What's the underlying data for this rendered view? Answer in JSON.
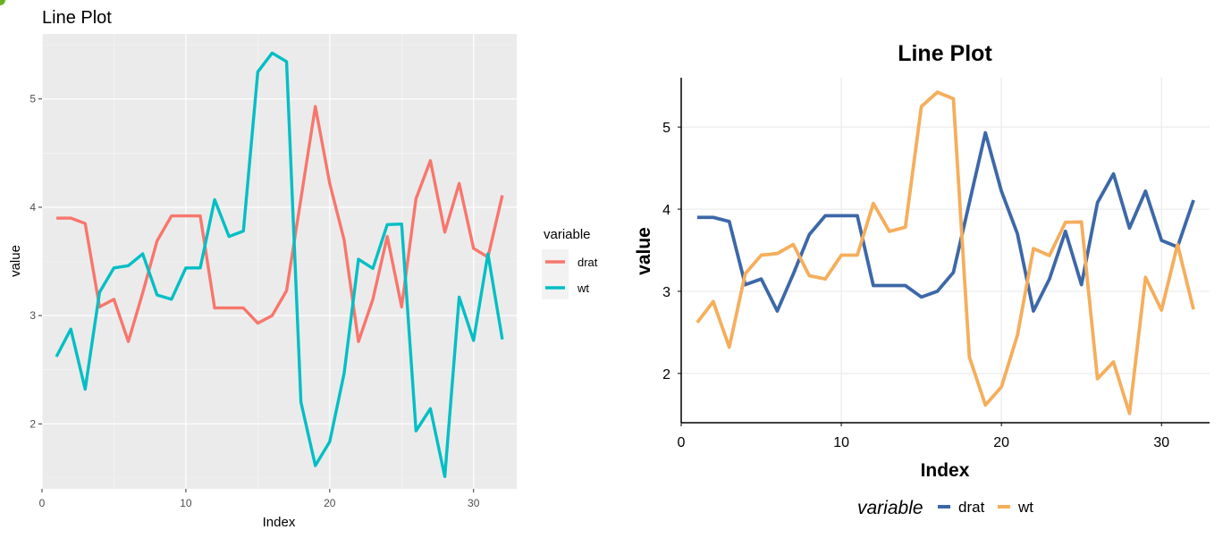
{
  "chart_data": [
    {
      "type": "line",
      "style": "ggplot-grey",
      "title": "Line Plot",
      "xlabel": "Index",
      "ylabel": "value",
      "xlim": [
        0,
        33
      ],
      "ylim": [
        1.4,
        5.6
      ],
      "xticks": [
        0,
        10,
        20,
        30
      ],
      "yticks": [
        2,
        3,
        4,
        5
      ],
      "x": [
        1,
        2,
        3,
        4,
        5,
        6,
        7,
        8,
        9,
        10,
        11,
        12,
        13,
        14,
        15,
        16,
        17,
        18,
        19,
        20,
        21,
        22,
        23,
        24,
        25,
        26,
        27,
        28,
        29,
        30,
        31,
        32
      ],
      "legend": {
        "title": "variable",
        "position": "right"
      },
      "series": [
        {
          "name": "drat",
          "color": "#F8766D",
          "values": [
            3.9,
            3.9,
            3.85,
            3.08,
            3.15,
            2.76,
            3.21,
            3.69,
            3.92,
            3.92,
            3.92,
            3.07,
            3.07,
            3.07,
            2.93,
            3.0,
            3.23,
            4.08,
            4.93,
            4.22,
            3.7,
            2.76,
            3.15,
            3.73,
            3.08,
            4.08,
            4.43,
            3.77,
            4.22,
            3.62,
            3.54,
            4.11
          ]
        },
        {
          "name": "wt",
          "color": "#00BFC4",
          "values": [
            2.62,
            2.875,
            2.32,
            3.215,
            3.44,
            3.46,
            3.57,
            3.19,
            3.15,
            3.44,
            3.44,
            4.07,
            3.73,
            3.78,
            5.25,
            5.424,
            5.345,
            2.2,
            1.615,
            1.835,
            2.465,
            3.52,
            3.435,
            3.84,
            3.845,
            1.935,
            2.14,
            1.513,
            3.17,
            2.77,
            3.57,
            2.78
          ]
        }
      ]
    },
    {
      "type": "line",
      "style": "classic-bold",
      "title": "Line Plot",
      "xlabel": "Index",
      "ylabel": "value",
      "xlim": [
        0,
        33
      ],
      "ylim": [
        1.4,
        5.6
      ],
      "xticks": [
        0,
        10,
        20,
        30
      ],
      "yticks": [
        2,
        3,
        4,
        5
      ],
      "x": [
        1,
        2,
        3,
        4,
        5,
        6,
        7,
        8,
        9,
        10,
        11,
        12,
        13,
        14,
        15,
        16,
        17,
        18,
        19,
        20,
        21,
        22,
        23,
        24,
        25,
        26,
        27,
        28,
        29,
        30,
        31,
        32
      ],
      "legend": {
        "title": "variable",
        "position": "bottom"
      },
      "series": [
        {
          "name": "drat",
          "color": "#3D68A8",
          "values": [
            3.9,
            3.9,
            3.85,
            3.08,
            3.15,
            2.76,
            3.21,
            3.69,
            3.92,
            3.92,
            3.92,
            3.07,
            3.07,
            3.07,
            2.93,
            3.0,
            3.23,
            4.08,
            4.93,
            4.22,
            3.7,
            2.76,
            3.15,
            3.73,
            3.08,
            4.08,
            4.43,
            3.77,
            4.22,
            3.62,
            3.54,
            4.11
          ]
        },
        {
          "name": "wt",
          "color": "#F5AE5C",
          "values": [
            2.62,
            2.875,
            2.32,
            3.215,
            3.44,
            3.46,
            3.57,
            3.19,
            3.15,
            3.44,
            3.44,
            4.07,
            3.73,
            3.78,
            5.25,
            5.424,
            5.345,
            2.2,
            1.615,
            1.835,
            2.465,
            3.52,
            3.435,
            3.84,
            3.845,
            1.935,
            2.14,
            1.513,
            3.17,
            2.77,
            3.57,
            2.78
          ]
        }
      ]
    }
  ]
}
